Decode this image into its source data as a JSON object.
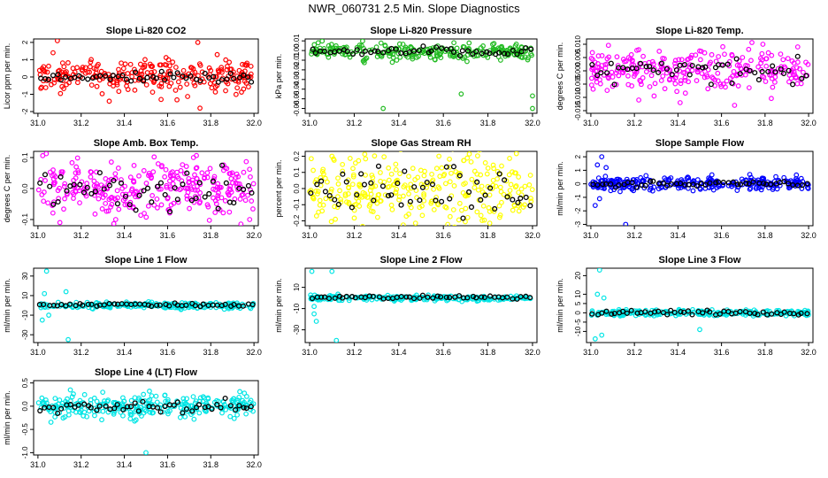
{
  "page": {
    "title": "NWR_060731  2.5 Min. Slope Diagnostics"
  },
  "chart_data": [
    {
      "type": "scatter",
      "title": "Slope Li-820 CO2",
      "ylabel": "Licor ppm per min.",
      "xlim": [
        30.98,
        32.02
      ],
      "ylim": [
        -2.1,
        2.2
      ],
      "xticks": [
        "31.0",
        "31.2",
        "31.4",
        "31.6",
        "31.8",
        "32.0"
      ],
      "yticks": [
        "-2",
        "-1",
        "0",
        "1",
        "2"
      ],
      "ytick_values": [
        -2,
        -1,
        0,
        1,
        2
      ],
      "color": "#ff0000",
      "summary_color": "#000000",
      "noise": {
        "center": 0.05,
        "spread": 0.45,
        "count": 260,
        "outliers": [
          [
            31.07,
            1.4
          ],
          [
            31.09,
            2.1
          ],
          [
            31.33,
            -1.4
          ],
          [
            31.74,
            2.0
          ],
          [
            31.75,
            -1.8
          ],
          [
            31.57,
            -1.3
          ]
        ]
      },
      "summary": {
        "center": 0.0,
        "spread": 0.15,
        "count": 50
      }
    },
    {
      "type": "scatter",
      "title": "Slope Li-820 Pressure",
      "ylabel": "kPa per min.",
      "xlim": [
        30.98,
        32.02
      ],
      "ylim": [
        -0.065,
        0.012
      ],
      "xticks": [
        "31.0",
        "31.2",
        "31.4",
        "31.6",
        "31.8",
        "32.0"
      ],
      "yticks": [
        "-0.06",
        "-0.05",
        "-0.04",
        "-0.03",
        "-0.02",
        "-0.01",
        "0.00",
        "0.01"
      ],
      "ytick_values": [
        -0.06,
        -0.05,
        -0.04,
        -0.03,
        -0.02,
        -0.01,
        0.0,
        0.01
      ],
      "color": "#22bb22",
      "summary_color": "#000000",
      "noise": {
        "center": -0.001,
        "spread": 0.004,
        "count": 260,
        "outliers": [
          [
            31.33,
            -0.06
          ],
          [
            31.68,
            -0.045
          ],
          [
            32.0,
            -0.06
          ],
          [
            32.0,
            -0.047
          ]
        ]
      },
      "summary": {
        "center": -0.001,
        "spread": 0.002,
        "count": 50
      }
    },
    {
      "type": "scatter",
      "title": "Slope Li-820 Temp.",
      "ylabel": "degrees C per min.",
      "xlim": [
        30.98,
        32.02
      ],
      "ylim": [
        -0.016,
        0.012
      ],
      "xticks": [
        "31.0",
        "31.2",
        "31.4",
        "31.6",
        "31.8",
        "32.0"
      ],
      "yticks": [
        "-0.015",
        "-0.010",
        "-0.005",
        "0.000",
        "0.005",
        "0.010"
      ],
      "ytick_values": [
        -0.015,
        -0.01,
        -0.005,
        0.0,
        0.005,
        0.01
      ],
      "color": "#ff00ff",
      "summary_color": "#000000",
      "noise": {
        "center": 0.0,
        "spread": 0.004,
        "count": 260,
        "outliers": [
          [
            31.22,
            -0.011
          ],
          [
            31.41,
            -0.012
          ],
          [
            31.66,
            -0.013
          ],
          [
            31.79,
            0.01
          ],
          [
            31.95,
            0.009
          ]
        ]
      },
      "summary": {
        "center": 0.0,
        "spread": 0.002,
        "count": 50
      }
    },
    {
      "type": "scatter",
      "title": "Slope Amb. Box Temp.",
      "ylabel": "degrees C per min.",
      "xlim": [
        30.98,
        32.02
      ],
      "ylim": [
        -0.12,
        0.12
      ],
      "xticks": [
        "31.0",
        "31.2",
        "31.4",
        "31.6",
        "31.8",
        "32.0"
      ],
      "yticks": [
        "-0.1",
        "0.0",
        "0.1"
      ],
      "ytick_values": [
        -0.1,
        0.0,
        0.1
      ],
      "color": "#ff00ff",
      "summary_color": "#000000",
      "noise": {
        "center": 0.0,
        "spread": 0.045,
        "count": 300,
        "outliers": [
          [
            31.36,
            -0.1
          ],
          [
            31.72,
            0.1
          ],
          [
            31.98,
            -0.1
          ]
        ]
      },
      "summary": {
        "center": 0.0,
        "spread": 0.03,
        "count": 50
      }
    },
    {
      "type": "scatter",
      "title": "Slope Gas Stream RH",
      "ylabel": "percent per min.",
      "xlim": [
        30.98,
        32.02
      ],
      "ylim": [
        -0.23,
        0.23
      ],
      "xticks": [
        "31.0",
        "31.2",
        "31.4",
        "31.6",
        "31.8",
        "32.0"
      ],
      "yticks": [
        "-0.2",
        "-0.1",
        "0.0",
        "0.1",
        "0.2"
      ],
      "ytick_values": [
        -0.2,
        -0.1,
        0.0,
        0.1,
        0.2
      ],
      "color": "#ffff00",
      "summary_color": "#000000",
      "noise": {
        "center": 0.0,
        "spread": 0.1,
        "count": 300,
        "outliers": [
          [
            31.1,
            0.2
          ],
          [
            31.58,
            0.2
          ]
        ]
      },
      "summary": {
        "center": 0.0,
        "spread": 0.07,
        "count": 50
      }
    },
    {
      "type": "scatter",
      "title": "Slope Sample Flow",
      "ylabel": "ml/min per min.",
      "xlim": [
        30.98,
        32.02
      ],
      "ylim": [
        -3.1,
        2.4
      ],
      "xticks": [
        "31.0",
        "31.2",
        "31.4",
        "31.6",
        "31.8",
        "32.0"
      ],
      "yticks": [
        "-3",
        "-2",
        "-1",
        "0",
        "1",
        "2"
      ],
      "ytick_values": [
        -3,
        -2,
        -1,
        0,
        1,
        2
      ],
      "color": "#0000ff",
      "summary_color": "#000000",
      "noise": {
        "center": 0.0,
        "spread": 0.25,
        "count": 280,
        "outliers": [
          [
            31.05,
            2.0
          ],
          [
            31.03,
            1.4
          ],
          [
            31.02,
            -1.6
          ],
          [
            31.04,
            -1.1
          ],
          [
            31.07,
            1.2
          ],
          [
            31.16,
            -3.0
          ]
        ]
      },
      "summary": {
        "center": 0.0,
        "spread": 0.1,
        "count": 50
      }
    },
    {
      "type": "scatter",
      "title": "Slope Line 1 Flow",
      "ylabel": "ml/min per min.",
      "xlim": [
        30.98,
        32.02
      ],
      "ylim": [
        -38,
        38
      ],
      "xticks": [
        "31.0",
        "31.2",
        "31.4",
        "31.6",
        "31.8",
        "32.0"
      ],
      "yticks": [
        "-30",
        "-10",
        "10",
        "30"
      ],
      "ytick_values": [
        -30,
        -10,
        10,
        30
      ],
      "color": "#00e5e5",
      "summary_color": "#000000",
      "noise": {
        "center": 0.0,
        "spread": 1.5,
        "count": 240,
        "outliers": [
          [
            31.04,
            35.0
          ],
          [
            31.03,
            12.0
          ],
          [
            31.02,
            -15.0
          ],
          [
            31.05,
            -10.0
          ],
          [
            31.13,
            14.0
          ],
          [
            31.14,
            -35.0
          ]
        ]
      },
      "summary": {
        "center": 0.5,
        "spread": 0.8,
        "count": 50
      }
    },
    {
      "type": "scatter",
      "title": "Slope Line 2 Flow",
      "ylabel": "ml/min per min.",
      "xlim": [
        30.98,
        32.02
      ],
      "ylim": [
        -42,
        28
      ],
      "xticks": [
        "31.0",
        "31.2",
        "31.4",
        "31.6",
        "31.8",
        "32.0"
      ],
      "yticks": [
        "-30",
        "-10",
        "10"
      ],
      "ytick_values": [
        -30,
        -10,
        10
      ],
      "color": "#00e5e5",
      "summary_color": "#000000",
      "noise": {
        "center": 0.0,
        "spread": 1.2,
        "count": 240,
        "outliers": [
          [
            31.01,
            25.0
          ],
          [
            31.02,
            -15.0
          ],
          [
            31.03,
            -22.0
          ],
          [
            31.02,
            -8.0
          ],
          [
            31.1,
            25.0
          ],
          [
            31.12,
            -40.0
          ]
        ]
      },
      "summary": {
        "center": 0.5,
        "spread": 0.8,
        "count": 50
      }
    },
    {
      "type": "scatter",
      "title": "Slope Line 3 Flow",
      "ylabel": "ml/min per min.",
      "xlim": [
        30.98,
        32.02
      ],
      "ylim": [
        -16,
        24
      ],
      "xticks": [
        "31.0",
        "31.2",
        "31.4",
        "31.6",
        "31.8",
        "32.0"
      ],
      "yticks": [
        "-10",
        "-5",
        "0",
        "5",
        "10",
        "20"
      ],
      "ytick_values": [
        -10,
        -5,
        0,
        5,
        10,
        20
      ],
      "color": "#00e5e5",
      "summary_color": "#000000",
      "noise": {
        "center": 0.0,
        "spread": 0.8,
        "count": 240,
        "outliers": [
          [
            31.04,
            23.0
          ],
          [
            31.03,
            10.0
          ],
          [
            31.02,
            -14.0
          ],
          [
            31.05,
            -12.0
          ],
          [
            31.06,
            8.0
          ],
          [
            31.5,
            -9.0
          ]
        ]
      },
      "summary": {
        "center": 0.0,
        "spread": 0.6,
        "count": 50
      }
    },
    {
      "type": "scatter",
      "title": "Slope Line 4 (LT) Flow",
      "ylabel": "ml/min per min.",
      "xlim": [
        30.98,
        32.02
      ],
      "ylim": [
        -1.05,
        0.55
      ],
      "xticks": [
        "31.0",
        "31.2",
        "31.4",
        "31.6",
        "31.8",
        "32.0"
      ],
      "yticks": [
        "-1.0",
        "-0.5",
        "0.0",
        "0.5"
      ],
      "ytick_values": [
        -1.0,
        -0.5,
        0.0,
        0.5
      ],
      "color": "#00e5e5",
      "summary_color": "#000000",
      "noise": {
        "center": 0.0,
        "spread": 0.12,
        "count": 280,
        "outliers": [
          [
            31.5,
            -1.0
          ],
          [
            31.3,
            0.3
          ],
          [
            31.15,
            0.35
          ]
        ]
      },
      "summary": {
        "center": 0.0,
        "spread": 0.06,
        "count": 50
      }
    }
  ]
}
